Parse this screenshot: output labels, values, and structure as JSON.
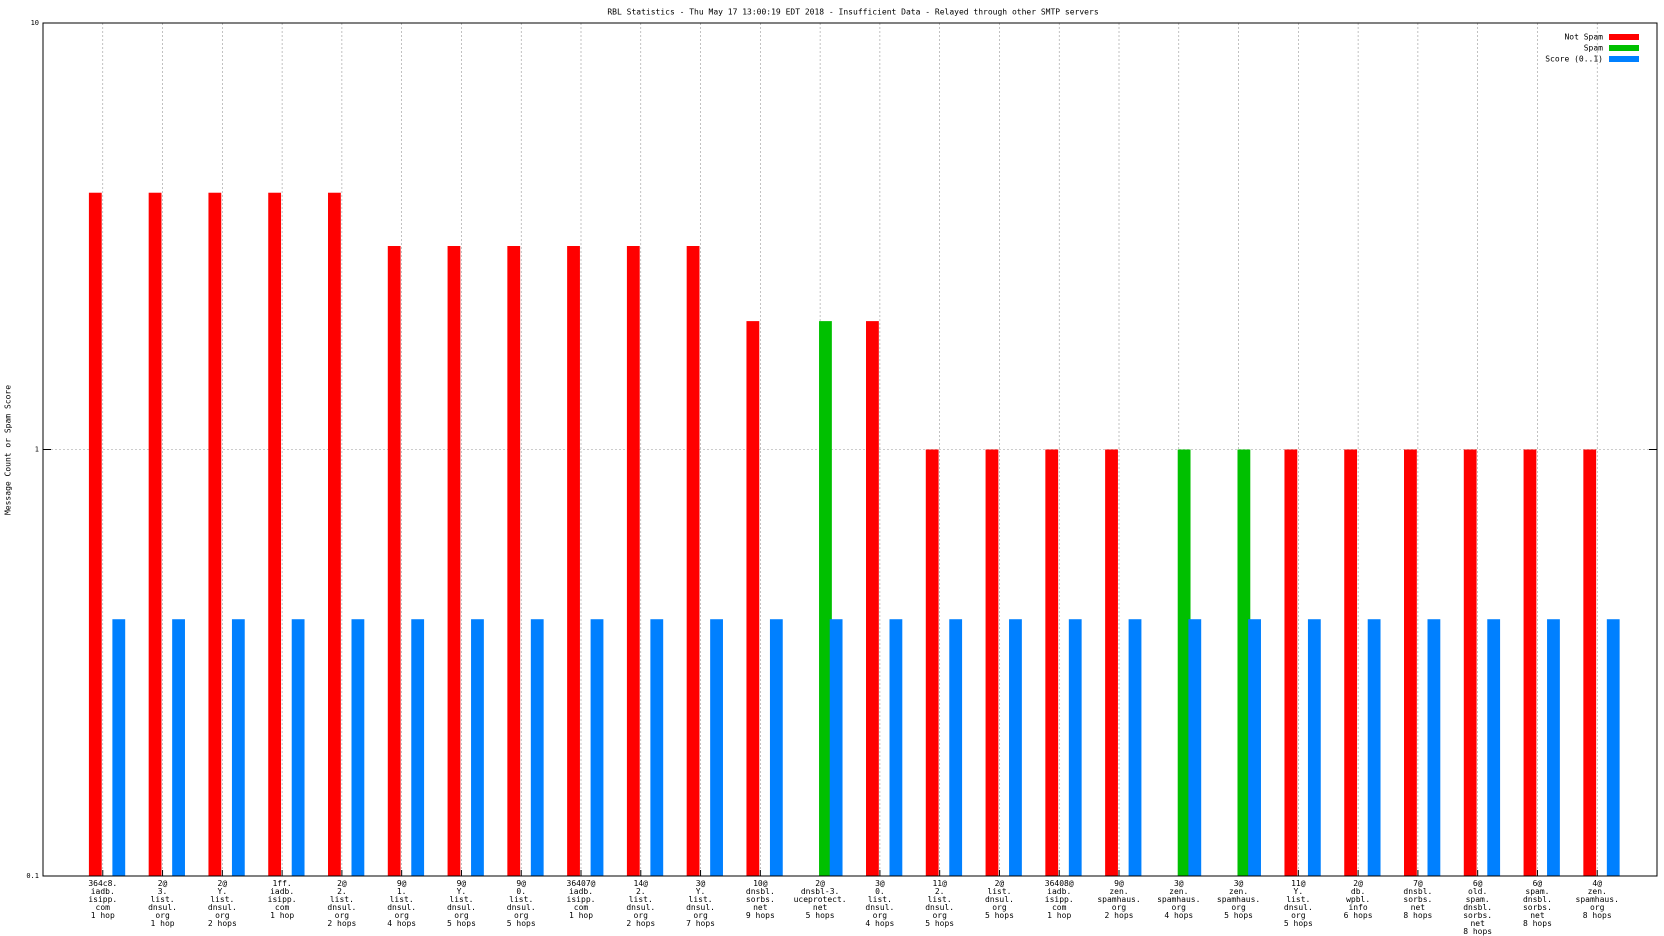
{
  "chart_data": {
    "type": "bar",
    "title": "RBL Statistics - Thu May 17 13:00:19 EDT 2018 - Insufficient Data - Relayed through other SMTP servers",
    "y_label": "Message Count or Spam Score",
    "categories": [
      [
        "364c8.",
        "iadb.",
        "isipp.",
        "com",
        "1 hop"
      ],
      [
        "2@",
        "3.",
        "list.",
        "dnsul.",
        "org",
        "1 hop"
      ],
      [
        "2@",
        "Y.",
        "list.",
        "dnsul.",
        "org",
        "2 hops"
      ],
      [
        "1ff.",
        "iadb.",
        "isipp.",
        "com",
        "1 hop"
      ],
      [
        "2@",
        "2.",
        "list.",
        "dnsul.",
        "org",
        "2 hops"
      ],
      [
        "9@",
        "1.",
        "list.",
        "dnsul.",
        "org",
        "4 hops"
      ],
      [
        "9@",
        "Y.",
        "list.",
        "dnsul.",
        "org",
        "5 hops"
      ],
      [
        "9@",
        "0.",
        "list.",
        "dnsul.",
        "org",
        "5 hops"
      ],
      [
        "36407@",
        "iadb.",
        "isipp.",
        "com",
        "1 hop"
      ],
      [
        "14@",
        "2.",
        "list.",
        "dnsul.",
        "org",
        "2 hops"
      ],
      [
        "3@",
        "Y.",
        "list.",
        "dnsul.",
        "org",
        "7 hops"
      ],
      [
        "10@",
        "dnsbl.",
        "sorbs.",
        "net",
        "9 hops"
      ],
      [
        "2@",
        "dnsbl-3.",
        "uceprotect.",
        "net",
        "5 hops"
      ],
      [
        "3@",
        "0.",
        "list.",
        "dnsul.",
        "org",
        "4 hops"
      ],
      [
        "11@",
        "2.",
        "list.",
        "dnsul.",
        "org",
        "5 hops"
      ],
      [
        "2@",
        "list.",
        "dnsul.",
        "org",
        "5 hops"
      ],
      [
        "36408@",
        "iadb.",
        "isipp.",
        "com",
        "1 hop"
      ],
      [
        "9@",
        "zen.",
        "spamhaus.",
        "org",
        "2 hops"
      ],
      [
        "3@",
        "zen.",
        "spamhaus.",
        "org",
        "4 hops"
      ],
      [
        "3@",
        "zen.",
        "spamhaus.",
        "org",
        "5 hops"
      ],
      [
        "11@",
        "Y.",
        "list.",
        "dnsul.",
        "org",
        "5 hops"
      ],
      [
        "2@",
        "db.",
        "wpbl.",
        "info",
        "6 hops"
      ],
      [
        "7@",
        "dnsbl.",
        "sorbs.",
        "net",
        "8 hops"
      ],
      [
        "6@",
        "old.",
        "spam.",
        "dnsbl.",
        "sorbs.",
        "net",
        "8 hops"
      ],
      [
        "6@",
        "spam.",
        "dnsbl.",
        "sorbs.",
        "net",
        "8 hops"
      ],
      [
        "4@",
        "zen.",
        "spamhaus.",
        "org",
        "8 hops"
      ]
    ],
    "series": [
      {
        "name": "Not Spam",
        "color": "#ff0000",
        "values": [
          4,
          4,
          4,
          4,
          4,
          3,
          3,
          3,
          3,
          3,
          3,
          2,
          null,
          2,
          1,
          1,
          1,
          1,
          null,
          null,
          1,
          1,
          1,
          1,
          1,
          1
        ]
      },
      {
        "name": "Spam",
        "color": "#00c000",
        "values": [
          null,
          null,
          null,
          null,
          null,
          null,
          null,
          null,
          null,
          null,
          null,
          null,
          2,
          null,
          null,
          null,
          null,
          null,
          1,
          1,
          null,
          null,
          null,
          null,
          null,
          null
        ]
      },
      {
        "name": "Score (0..1)",
        "color": "#0080ff",
        "values": [
          0.4,
          0.4,
          0.4,
          0.4,
          0.4,
          0.4,
          0.4,
          0.4,
          0.4,
          0.4,
          0.4,
          0.4,
          0.4,
          0.4,
          0.4,
          0.4,
          0.4,
          0.4,
          0.4,
          0.4,
          0.4,
          0.4,
          0.4,
          0.4,
          0.4,
          0.4
        ]
      }
    ],
    "ylim": [
      0.1,
      10
    ],
    "yticks": [
      0.1,
      1,
      10
    ],
    "log_scale_y": true,
    "grid": true,
    "legend_position": "top-right"
  }
}
